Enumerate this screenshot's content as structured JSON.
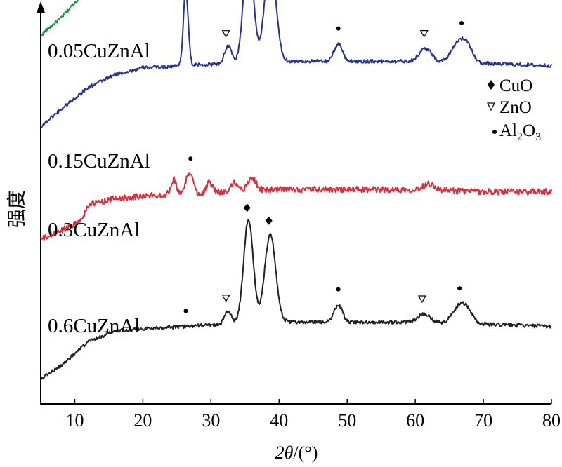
{
  "chart_data": {
    "type": "line",
    "xlabel_main": "2θ",
    "xlabel_unit": "/(°)",
    "ylabel": "强度",
    "xlim": [
      5,
      80
    ],
    "x_ticks": [
      "10",
      "20",
      "30",
      "40",
      "50",
      "60",
      "70",
      "80"
    ],
    "legend_placement": "right",
    "legend": [
      {
        "marker": "diamond",
        "label": "CuO"
      },
      {
        "marker": "triangle",
        "label": "ZnO"
      },
      {
        "marker": "dot",
        "label": "Al2O3"
      }
    ],
    "series": [
      {
        "name": "0.05CuZnAl",
        "color": "#1a9641",
        "baseline": 0.79,
        "noise": 0.004,
        "bg": [
          [
            5,
            0.0
          ],
          [
            8,
            0.04
          ],
          [
            12,
            0.11
          ],
          [
            16,
            0.135
          ],
          [
            20,
            0.145
          ],
          [
            26,
            0.145
          ],
          [
            32,
            0.15
          ],
          [
            40,
            0.15
          ],
          [
            48,
            0.155
          ],
          [
            60,
            0.155
          ],
          [
            70,
            0.155
          ],
          [
            80,
            0.155
          ]
        ],
        "peaks": [
          [
            26.3,
            0.185,
            0.35
          ],
          [
            32.5,
            0.045,
            0.5
          ],
          [
            35.5,
            0.36,
            0.7
          ],
          [
            38.7,
            0.32,
            0.8
          ],
          [
            48.7,
            0.055,
            0.6
          ],
          [
            61.5,
            0.045,
            0.9
          ],
          [
            66.2,
            0.045,
            1.0
          ],
          [
            68.0,
            0.04,
            1.0
          ]
        ],
        "markers": [
          [
            26.5,
            "dot"
          ],
          [
            32.5,
            "triangle"
          ],
          [
            35.0,
            "diamond"
          ],
          [
            38.7,
            "diamond"
          ],
          [
            48.7,
            "dot"
          ],
          [
            61.3,
            "triangle"
          ],
          [
            66.8,
            "dot"
          ]
        ]
      },
      {
        "name": "0.15CuZnAl",
        "color": "#253494",
        "baseline": 0.58,
        "noise": 0.004,
        "bg": [
          [
            5,
            0.0
          ],
          [
            8,
            0.04
          ],
          [
            12,
            0.09
          ],
          [
            16,
            0.12
          ],
          [
            20,
            0.135
          ],
          [
            26,
            0.14
          ],
          [
            32,
            0.145
          ],
          [
            40,
            0.15
          ],
          [
            48,
            0.15
          ],
          [
            60,
            0.15
          ],
          [
            70,
            0.145
          ],
          [
            80,
            0.14
          ]
        ],
        "peaks": [
          [
            26.3,
            0.175,
            0.35
          ],
          [
            32.5,
            0.04,
            0.5
          ],
          [
            35.5,
            0.27,
            0.7
          ],
          [
            38.7,
            0.24,
            0.8
          ],
          [
            48.7,
            0.04,
            0.6
          ],
          [
            61.5,
            0.03,
            0.9
          ],
          [
            66.3,
            0.045,
            1.0
          ],
          [
            67.7,
            0.03,
            0.8
          ]
        ],
        "markers": [
          [
            26.3,
            "dot"
          ],
          [
            32.2,
            "triangle"
          ],
          [
            35.3,
            "diamond"
          ],
          [
            38.7,
            "diamond"
          ],
          [
            48.7,
            "dot"
          ],
          [
            61.3,
            "triangle"
          ],
          [
            66.8,
            "dot"
          ]
        ]
      },
      {
        "name": "0.3CuZnAl",
        "color": "#d7303f",
        "baseline": 0.32,
        "noise": 0.007,
        "bg": [
          [
            5,
            0.0
          ],
          [
            8,
            0.02
          ],
          [
            11,
            0.045
          ],
          [
            12,
            0.08
          ],
          [
            16,
            0.095
          ],
          [
            20,
            0.1
          ],
          [
            26,
            0.105
          ],
          [
            32,
            0.11
          ],
          [
            40,
            0.115
          ],
          [
            50,
            0.115
          ],
          [
            60,
            0.115
          ],
          [
            70,
            0.11
          ],
          [
            80,
            0.11
          ]
        ],
        "peaks": [
          [
            24.5,
            0.035,
            0.4
          ],
          [
            26.5,
            0.035,
            0.35
          ],
          [
            27.2,
            0.04,
            0.3
          ],
          [
            29.8,
            0.025,
            0.4
          ],
          [
            33.5,
            0.02,
            0.5
          ],
          [
            36.0,
            0.03,
            0.6
          ],
          [
            62.0,
            0.015,
            0.8
          ]
        ],
        "markers": [
          [
            27.0,
            "dot"
          ]
        ]
      },
      {
        "name": "0.6CuZnAl",
        "color": "#222222",
        "baseline": 0.0,
        "noise": 0.004,
        "bg": [
          [
            5,
            0.0
          ],
          [
            8,
            0.03
          ],
          [
            12,
            0.085
          ],
          [
            16,
            0.11
          ],
          [
            20,
            0.115
          ],
          [
            26,
            0.12
          ],
          [
            32,
            0.125
          ],
          [
            40,
            0.13
          ],
          [
            48,
            0.13
          ],
          [
            60,
            0.13
          ],
          [
            70,
            0.125
          ],
          [
            80,
            0.12
          ]
        ],
        "peaks": [
          [
            32.5,
            0.03,
            0.5
          ],
          [
            35.5,
            0.24,
            0.7
          ],
          [
            38.7,
            0.205,
            0.8
          ],
          [
            48.7,
            0.04,
            0.6
          ],
          [
            61.3,
            0.02,
            0.9
          ],
          [
            66.5,
            0.04,
            1.0
          ],
          [
            67.8,
            0.02,
            0.8
          ]
        ],
        "markers": [
          [
            26.3,
            "dot"
          ],
          [
            32.2,
            "triangle"
          ],
          [
            35.3,
            "diamond"
          ],
          [
            38.5,
            "diamond"
          ],
          [
            48.7,
            "dot"
          ],
          [
            61.0,
            "triangle"
          ],
          [
            66.5,
            "dot"
          ]
        ]
      }
    ]
  }
}
